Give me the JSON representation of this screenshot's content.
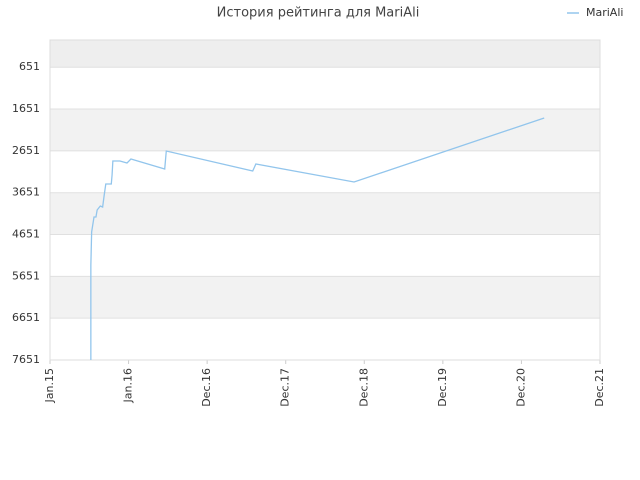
{
  "chart_data": {
    "type": "line",
    "title": "История рейтинга для MariAli",
    "series": [
      {
        "name": "MariAli",
        "color": "#92c5ec",
        "x": [
          0.52,
          0.52,
          0.53,
          0.56,
          0.585,
          0.6,
          0.64,
          0.67,
          0.69,
          0.71,
          0.78,
          0.79,
          0.8,
          0.89,
          0.98,
          1.03,
          1.46,
          1.48,
          2.58,
          2.62,
          3.87,
          6.29
        ],
        "values": [
          7651,
          5380,
          4590,
          4232,
          4232,
          4065,
          3969,
          3993,
          3706,
          3443,
          3443,
          3228,
          2893,
          2893,
          2941,
          2845,
          3084,
          2654,
          3132,
          2965,
          3395,
          1865
        ]
      }
    ],
    "ylim": [
      0,
      7651
    ],
    "yticks": [
      651,
      1651,
      2651,
      3651,
      4651,
      5651,
      6651,
      7651
    ],
    "y_reversed": true,
    "xlim": [
      0,
      7
    ],
    "xticks": [
      {
        "value": 0,
        "label": "Jan.15"
      },
      {
        "value": 1,
        "label": "Jan.16"
      },
      {
        "value": 2,
        "label": "Dec.16"
      },
      {
        "value": 3,
        "label": "Dec.17"
      },
      {
        "value": 4,
        "label": "Dec.18"
      },
      {
        "value": 5,
        "label": "Dec.19"
      },
      {
        "value": 6,
        "label": "Dec.20"
      },
      {
        "value": 7,
        "label": "Dec.21"
      }
    ],
    "grid": true,
    "legend": "top-right"
  }
}
